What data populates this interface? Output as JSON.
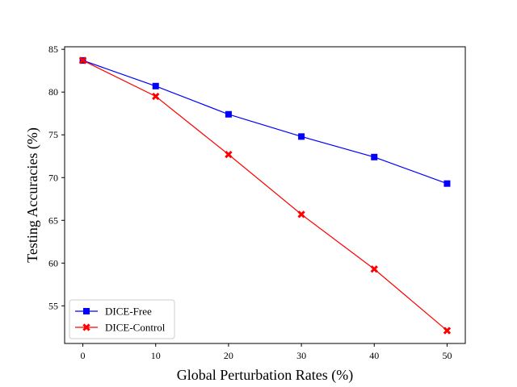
{
  "chart_data": {
    "type": "line",
    "title": "",
    "xlabel": "Global Perturbation Rates (%)",
    "ylabel": "Testing Accuracies (%)",
    "x": [
      0,
      10,
      20,
      30,
      40,
      50
    ],
    "xticks": [
      "0",
      "10",
      "20",
      "30",
      "40",
      "50"
    ],
    "yticks": [
      "55",
      "60",
      "65",
      "70",
      "75",
      "80",
      "85"
    ],
    "xlim": [
      -2.5,
      52.5
    ],
    "ylim": [
      50.6,
      85.3
    ],
    "grid": false,
    "legend_position": "lower-left",
    "series": [
      {
        "name": "DICE-Free",
        "color": "#0000ff",
        "marker": "square",
        "values": [
          83.7,
          80.7,
          77.4,
          74.8,
          72.4,
          69.3
        ]
      },
      {
        "name": "DICE-Control",
        "color": "#ff0000",
        "marker": "x",
        "values": [
          83.7,
          79.5,
          72.7,
          65.7,
          59.3,
          52.1
        ]
      }
    ]
  }
}
